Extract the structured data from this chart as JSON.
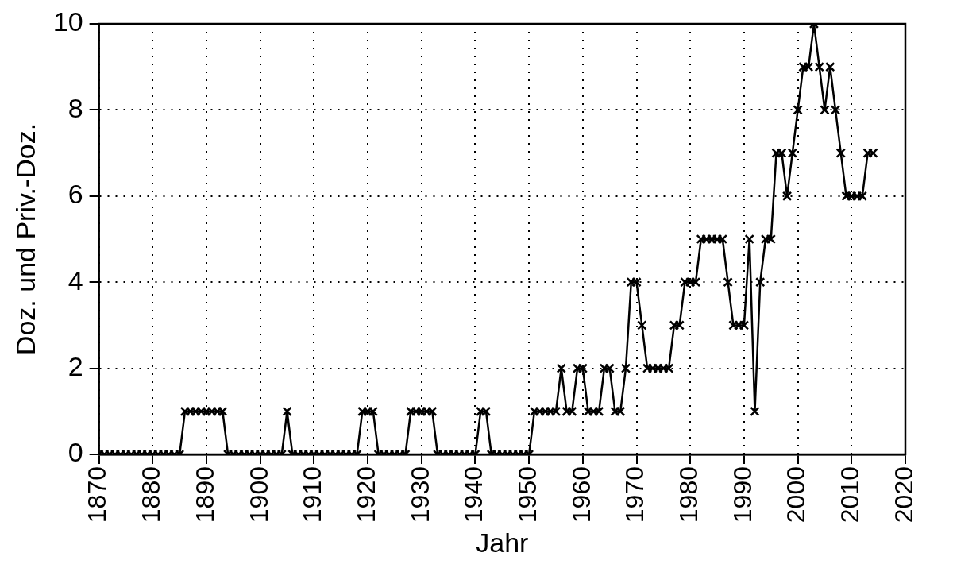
{
  "chart_data": {
    "type": "line",
    "xlabel": "Jahr",
    "ylabel": "Doz. und Priv.-Doz.",
    "x": [
      1870,
      1871,
      1872,
      1873,
      1874,
      1875,
      1876,
      1877,
      1878,
      1879,
      1880,
      1881,
      1882,
      1883,
      1884,
      1885,
      1886,
      1887,
      1888,
      1889,
      1890,
      1891,
      1892,
      1893,
      1894,
      1895,
      1896,
      1897,
      1898,
      1899,
      1900,
      1901,
      1902,
      1903,
      1904,
      1905,
      1906,
      1907,
      1908,
      1909,
      1910,
      1911,
      1912,
      1913,
      1914,
      1915,
      1916,
      1917,
      1918,
      1919,
      1920,
      1921,
      1922,
      1923,
      1924,
      1925,
      1926,
      1927,
      1928,
      1929,
      1930,
      1931,
      1932,
      1933,
      1934,
      1935,
      1936,
      1937,
      1938,
      1939,
      1940,
      1941,
      1942,
      1943,
      1944,
      1945,
      1946,
      1947,
      1948,
      1949,
      1950,
      1951,
      1952,
      1953,
      1954,
      1955,
      1956,
      1957,
      1958,
      1959,
      1960,
      1961,
      1962,
      1963,
      1964,
      1965,
      1966,
      1967,
      1968,
      1969,
      1970,
      1971,
      1972,
      1973,
      1974,
      1975,
      1976,
      1977,
      1978,
      1979,
      1980,
      1981,
      1982,
      1983,
      1984,
      1985,
      1986,
      1987,
      1988,
      1989,
      1990,
      1991,
      1992,
      1993,
      1994,
      1995,
      1996,
      1997,
      1998,
      1999,
      2000,
      2001,
      2002,
      2003,
      2004,
      2005,
      2006,
      2007,
      2008,
      2009,
      2010,
      2011,
      2012,
      2013,
      2014
    ],
    "series": [
      {
        "color": "#000000",
        "values": [
          0,
          0,
          0,
          0,
          0,
          0,
          0,
          0,
          0,
          0,
          0,
          0,
          0,
          0,
          0,
          0,
          1,
          1,
          1,
          1,
          1,
          1,
          1,
          1,
          0,
          0,
          0,
          0,
          0,
          0,
          0,
          0,
          0,
          0,
          0,
          1,
          0,
          0,
          0,
          0,
          0,
          0,
          0,
          0,
          0,
          0,
          0,
          0,
          0,
          1,
          1,
          1,
          0,
          0,
          0,
          0,
          0,
          0,
          1,
          1,
          1,
          1,
          1,
          0,
          0,
          0,
          0,
          0,
          0,
          0,
          0,
          1,
          1,
          0,
          0,
          0,
          0,
          0,
          0,
          0,
          0,
          1,
          1,
          1,
          1,
          1,
          2,
          1,
          1,
          2,
          2,
          1,
          1,
          1,
          2,
          2,
          1,
          1,
          2,
          4,
          4,
          3,
          2,
          2,
          2,
          2,
          2,
          3,
          3,
          4,
          4,
          4,
          5,
          5,
          5,
          5,
          5,
          4,
          3,
          3,
          3,
          5,
          1,
          4,
          5,
          5,
          7,
          7,
          6,
          7,
          8,
          9,
          9,
          10,
          9,
          8,
          9,
          8,
          7,
          6,
          6,
          6,
          6,
          7,
          7
        ]
      }
    ],
    "xlim": [
      1870,
      2020
    ],
    "xticks": [
      1870,
      1880,
      1890,
      1900,
      1910,
      1920,
      1930,
      1940,
      1950,
      1960,
      1970,
      1980,
      1990,
      2000,
      2010,
      2020
    ],
    "ylim": [
      0,
      10
    ],
    "yticks": [
      0,
      2,
      4,
      6,
      8,
      10
    ],
    "grid": true,
    "legend": false,
    "marker": "cross",
    "line_style": "solid"
  }
}
